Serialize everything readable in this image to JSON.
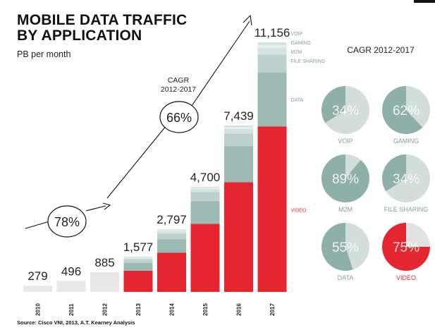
{
  "title": "MOBILE DATA TRAFFIC\nBY APPLICATION",
  "subtitle": "PB per month",
  "source": "Source: Cisco VNI, 2013, A.T. Kearney Analysis",
  "colors": {
    "video": "#e3262f",
    "data": "#9db9b3",
    "light_green": "#bcd1cc",
    "lighter_green": "#d4e3df",
    "lightest_green": "#e6efed",
    "gray": "#e8e8e8",
    "pie_light": "#d3dedb",
    "pie_dark": "#8fb0a8",
    "pie_video_light": "#e2e2e2",
    "text_gray": "#8a9d99"
  },
  "chart_data": [
    {
      "type": "bar",
      "categories": [
        "2010",
        "2011",
        "2012",
        "2013",
        "2014",
        "2015",
        "2016",
        "2017"
      ],
      "totals": [
        279,
        496,
        885,
        1577,
        2797,
        4700,
        7439,
        11156
      ],
      "total_labels": [
        "279",
        "496",
        "885",
        "1,577",
        "2,797",
        "4,700",
        "7,439",
        "11,156"
      ],
      "series": [
        {
          "name": "VIDEO",
          "values": [
            0,
            0,
            0,
            950,
            1750,
            3040,
            4900,
            7400
          ]
        },
        {
          "name": "DATA",
          "values": [
            0,
            0,
            0,
            350,
            600,
            1020,
            1620,
            2400
          ]
        },
        {
          "name": "FILE SHARING",
          "values": [
            0,
            0,
            0,
            160,
            260,
            400,
            560,
            800
          ]
        },
        {
          "name": "M2M",
          "values": [
            0,
            0,
            0,
            57,
            107,
            140,
            209,
            300
          ]
        },
        {
          "name": "GAMING",
          "values": [
            0,
            0,
            0,
            30,
            40,
            50,
            75,
            126
          ]
        },
        {
          "name": "VOIP",
          "values": [
            0,
            0,
            0,
            30,
            40,
            50,
            75,
            130
          ]
        }
      ],
      "series_labels": [
        "VOIP",
        "GAMING",
        "M2M",
        "FILE SHARING",
        "DATA",
        "VIDEO"
      ],
      "annotations": [
        {
          "label": "78%",
          "period": "2010-2012"
        },
        {
          "label": "66%",
          "caption": "CAGR\n2012-2017",
          "period": "2012-2017"
        }
      ],
      "ylim": [
        0,
        11156
      ],
      "grid": false,
      "legend": "labels-right-of-last-bar"
    },
    {
      "type": "pie",
      "title": "CAGR 2012-2017",
      "slices": [
        {
          "name": "VOIP",
          "value": 34
        },
        {
          "name": "GAMING",
          "value": 62
        },
        {
          "name": "M2M",
          "value": 89
        },
        {
          "name": "FILE SHARING",
          "value": 34
        },
        {
          "name": "DATA",
          "value": 55
        },
        {
          "name": "VIDEO",
          "value": 75
        }
      ],
      "value_suffix": "%"
    }
  ]
}
